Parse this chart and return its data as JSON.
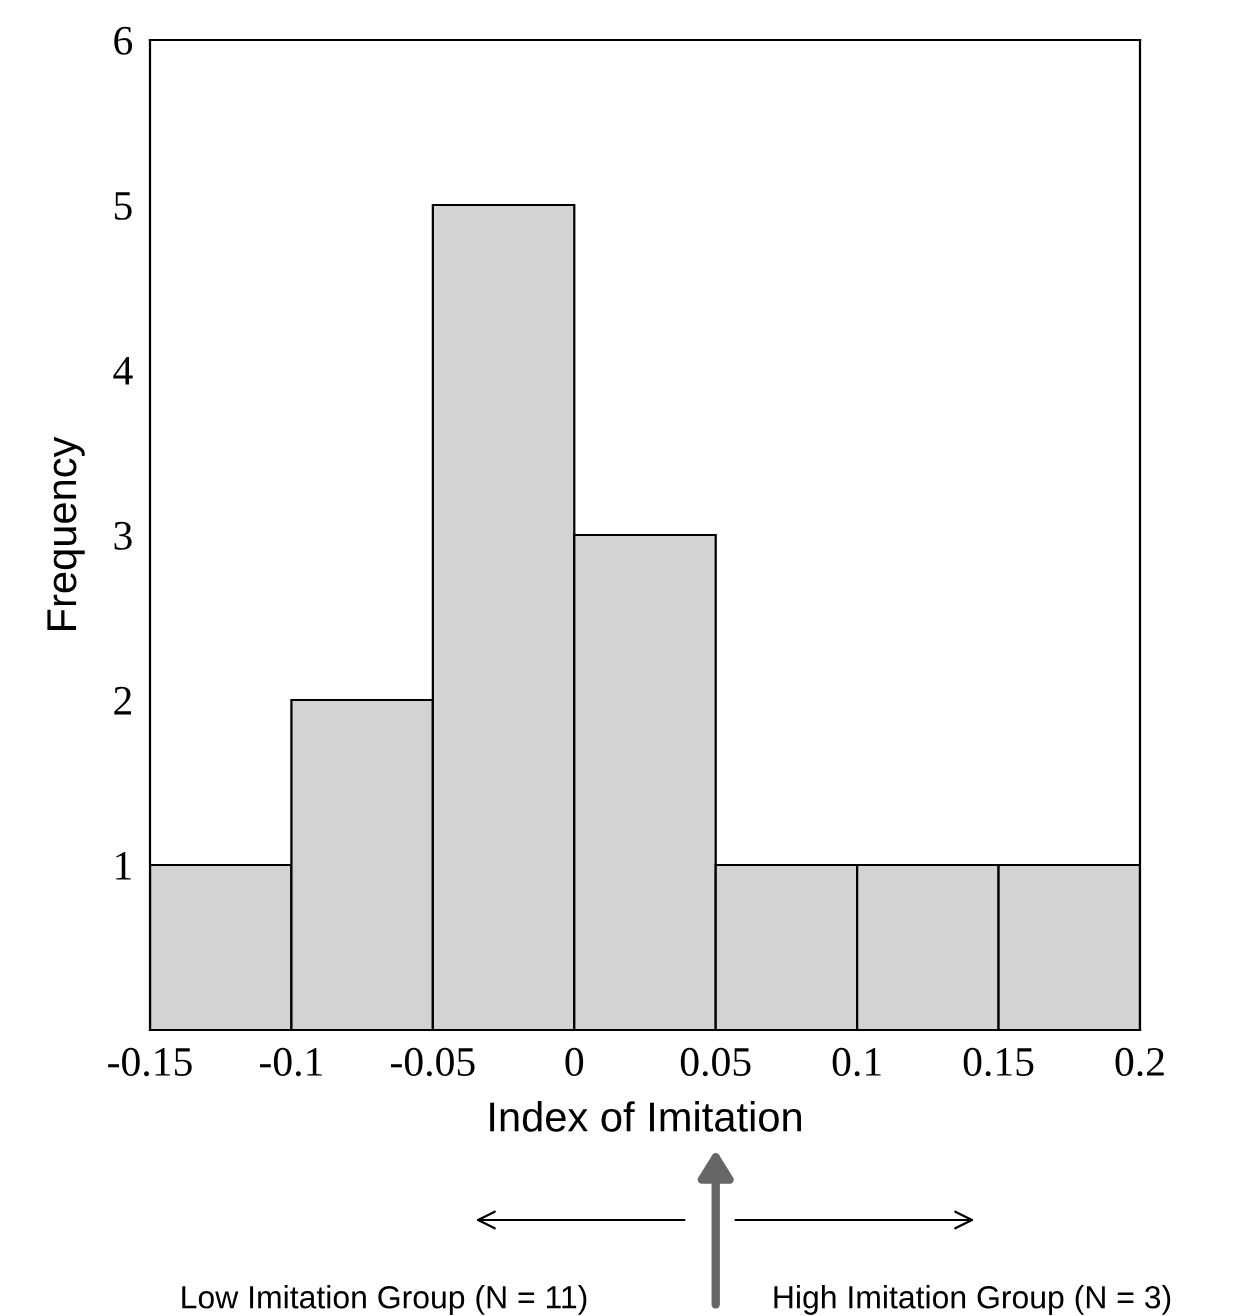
{
  "chart_data": {
    "type": "histogram",
    "xlabel": "Index of Imitation",
    "ylabel": "Frequency",
    "bins": [
      -0.15,
      -0.1,
      -0.05,
      0,
      0.05,
      0.1,
      0.15,
      0.2
    ],
    "values": [
      1,
      2,
      5,
      3,
      1,
      1,
      1
    ],
    "color": "#d3d3d3",
    "xlim": [
      -0.15,
      0.2
    ],
    "xticks": [
      -0.15,
      -0.1,
      -0.05,
      0,
      0.05,
      0.1,
      0.15,
      0.2
    ],
    "ylim": [
      0,
      6
    ],
    "yticks": [
      1,
      2,
      3,
      4,
      5,
      6
    ],
    "grid": false,
    "annotations": [
      "Low Imitation Group (N = 11)",
      "High Imitation Group (N = 3)"
    ]
  }
}
